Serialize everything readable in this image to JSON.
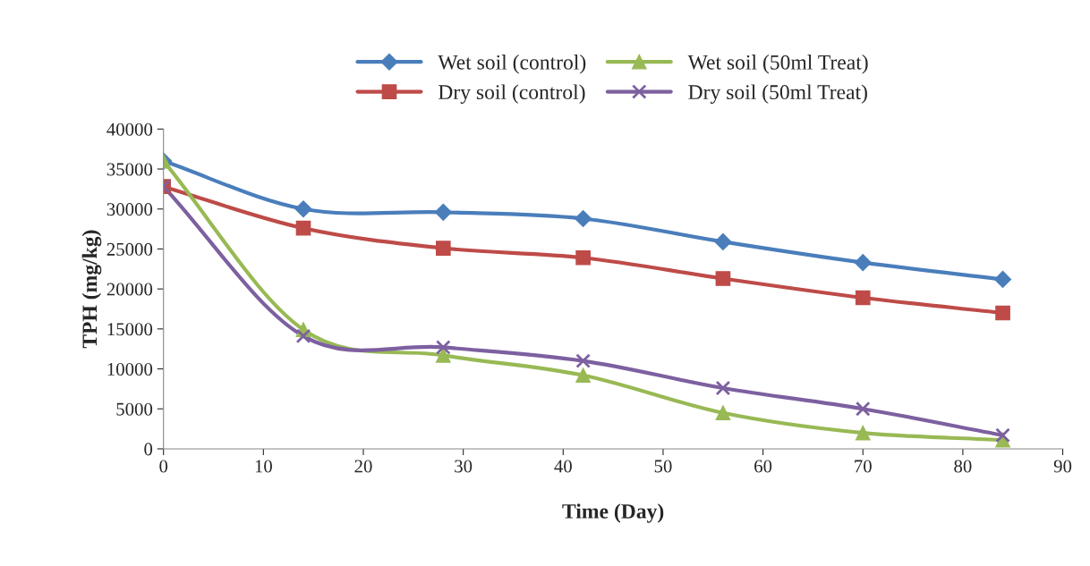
{
  "chart_data": {
    "type": "line",
    "xlabel": "Time (Day)",
    "ylabel": "TPH (mg/kg)",
    "x": [
      0,
      14,
      28,
      42,
      56,
      70,
      84
    ],
    "series": [
      {
        "name": "Wet soil (control)",
        "color": "#4a7ebb",
        "marker": "diamond",
        "values": [
          36000,
          30000,
          29600,
          28800,
          25900,
          23300,
          21200
        ]
      },
      {
        "name": "Dry soil (control)",
        "color": "#be4b48",
        "marker": "square",
        "values": [
          32800,
          27600,
          25100,
          23900,
          21300,
          18900,
          17000
        ]
      },
      {
        "name": "Wet soil (50ml Treat)",
        "color": "#98b954",
        "marker": "triangle",
        "values": [
          36000,
          14900,
          11700,
          9200,
          4500,
          2000,
          1100
        ]
      },
      {
        "name": "Dry soil (50ml Treat)",
        "color": "#7d60a0",
        "marker": "cross",
        "values": [
          32800,
          14100,
          12700,
          11000,
          7600,
          5000,
          1700
        ]
      }
    ],
    "xlim": [
      0,
      90
    ],
    "xticks": [
      0,
      10,
      20,
      30,
      40,
      50,
      60,
      70,
      80,
      90
    ],
    "ylim": [
      0,
      40000
    ],
    "yticks": [
      0,
      5000,
      10000,
      15000,
      20000,
      25000,
      30000,
      35000,
      40000
    ],
    "grid": false,
    "legend": "top",
    "line_style": "solid"
  }
}
